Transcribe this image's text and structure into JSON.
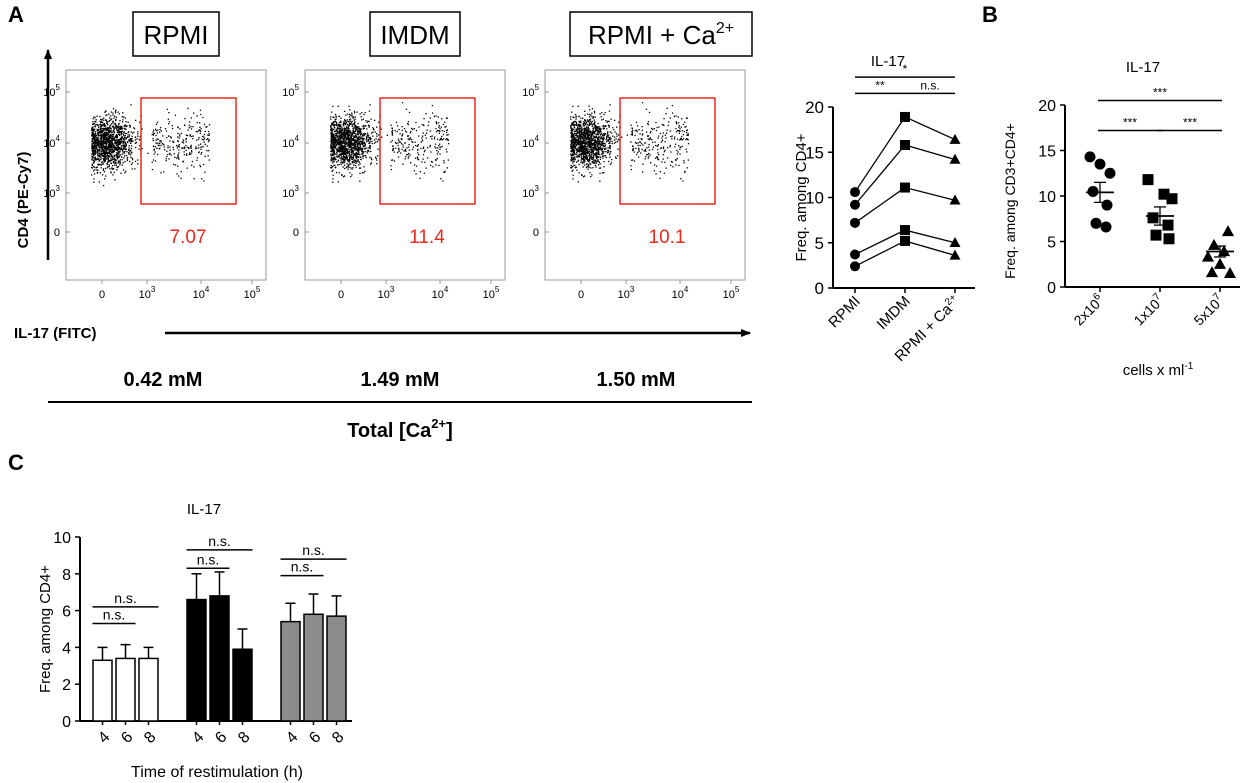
{
  "panel_labels": {
    "a": "A",
    "b": "B",
    "c": "C"
  },
  "flow": {
    "ylabel": "CD4 (PE-Cy7)",
    "xlabel": "IL-17 (FITC)",
    "ytick_labels": [
      {
        "base": "10",
        "exp": "5"
      },
      {
        "base": "10",
        "exp": "4"
      },
      {
        "base": "10",
        "exp": "3"
      },
      {
        "base": "0",
        "exp": ""
      }
    ],
    "xtick_labels": [
      {
        "base": "0",
        "exp": ""
      },
      {
        "base": "10",
        "exp": "3"
      },
      {
        "base": "10",
        "exp": "4"
      },
      {
        "base": "10",
        "exp": "5"
      }
    ],
    "conditions": [
      {
        "title": "RPMI",
        "gate_value": "7.07",
        "ca": "0.42 mM"
      },
      {
        "title": "IMDM",
        "gate_value": "11.4",
        "ca": "1.49 mM"
      },
      {
        "title": "RPMI + Ca",
        "title_sup": "2+",
        "gate_value": "10.1",
        "ca": "1.50 mM"
      }
    ],
    "total_label": "Total [Ca",
    "total_sup": "2+",
    "total_close": "]",
    "gate_color": "#e8291c"
  },
  "chart_data": [
    {
      "id": "A-right",
      "type": "line",
      "title": "IL-17",
      "ylabel": "Freq. among CD4+",
      "categories": [
        "RPMI",
        "IMDM",
        "RPMI + Ca2+"
      ],
      "category_display": [
        "RPMI",
        "IMDM",
        "RPMI + Ca"
      ],
      "category_sup": [
        "",
        "",
        "2+"
      ],
      "markers": [
        "circle",
        "square",
        "triangle"
      ],
      "ylim": [
        0,
        20
      ],
      "yticks": [
        0,
        5,
        10,
        15,
        20
      ],
      "series": [
        {
          "values": [
            10.6,
            18.9,
            16.4
          ]
        },
        {
          "values": [
            9.2,
            15.8,
            14.2
          ]
        },
        {
          "values": [
            7.2,
            11.1,
            9.7
          ]
        },
        {
          "values": [
            3.7,
            6.4,
            5.0
          ]
        },
        {
          "values": [
            2.4,
            5.2,
            3.6
          ]
        }
      ],
      "significance": [
        {
          "from": 0,
          "to": 1,
          "label": "**",
          "y": 21.5
        },
        {
          "from": 1,
          "to": 2,
          "label": "n.s.",
          "y": 21.5
        },
        {
          "from": 0,
          "to": 2,
          "label": "*",
          "y": 23.3
        }
      ]
    },
    {
      "id": "B",
      "type": "scatter",
      "title": "IL-17",
      "ylabel": "Freq. among CD3+CD4+",
      "xlabel": "cells x ml",
      "xlabel_sup": "-1",
      "categories": [
        "2x10^6",
        "1x10^7",
        "5x10^7"
      ],
      "category_base": [
        "2x10",
        "1x10",
        "5x10"
      ],
      "category_sup": [
        "6",
        "7",
        "7"
      ],
      "markers": [
        "circle",
        "square",
        "triangle"
      ],
      "ylim": [
        0,
        20
      ],
      "yticks": [
        0,
        5,
        10,
        15,
        20
      ],
      "points": [
        [
          14.3,
          13.5,
          12.5,
          10.5,
          9.0,
          7.0,
          6.6
        ],
        [
          11.8,
          10.2,
          9.7,
          7.6,
          6.8,
          5.7,
          5.3
        ],
        [
          6.1,
          4.6,
          3.9,
          3.3,
          2.5,
          1.6,
          1.5
        ]
      ],
      "means": [
        10.4,
        7.8,
        3.9
      ],
      "sems": [
        1.1,
        1.0,
        0.6
      ],
      "significance": [
        {
          "from": 0,
          "to": 1,
          "label": "***",
          "y": 17.2
        },
        {
          "from": 1,
          "to": 2,
          "label": "***",
          "y": 17.2
        },
        {
          "from": 0,
          "to": 2,
          "label": "***",
          "y": 20.5
        }
      ]
    },
    {
      "id": "C",
      "type": "bar",
      "title": "IL-17",
      "ylabel": "Freq. among CD4+",
      "xlabel": "Time of restimulation (h)",
      "ylim": [
        0,
        10
      ],
      "yticks": [
        0,
        2,
        4,
        6,
        8,
        10
      ],
      "groups": [
        {
          "fill": "#ffffff",
          "categories": [
            "4",
            "6",
            "8"
          ],
          "values": [
            3.3,
            3.4,
            3.4
          ],
          "errors": [
            0.7,
            0.75,
            0.6
          ]
        },
        {
          "fill": "#000000",
          "categories": [
            "4",
            "6",
            "8"
          ],
          "values": [
            6.6,
            6.8,
            3.9
          ],
          "errors": [
            1.4,
            1.3,
            1.1
          ]
        },
        {
          "fill": "#8c8c8c",
          "categories": [
            "4",
            "6",
            "8"
          ],
          "values": [
            5.4,
            5.8,
            5.7
          ],
          "errors": [
            1.0,
            1.1,
            1.1
          ]
        }
      ],
      "significance": [
        {
          "group": 0,
          "from": 0,
          "to": 1,
          "label": "n.s.",
          "y": 5.3
        },
        {
          "group": 0,
          "from": 0,
          "to": 2,
          "label": "n.s.",
          "y": 6.2
        },
        {
          "group": 1,
          "from": 0,
          "to": 1,
          "label": "n.s.",
          "y": 8.3
        },
        {
          "group": 1,
          "from": 0,
          "to": 2,
          "label": "n.s.",
          "y": 9.3
        },
        {
          "group": 2,
          "from": 0,
          "to": 1,
          "label": "n.s.",
          "y": 7.9
        },
        {
          "group": 2,
          "from": 0,
          "to": 2,
          "label": "n.s.",
          "y": 8.8
        }
      ]
    }
  ]
}
